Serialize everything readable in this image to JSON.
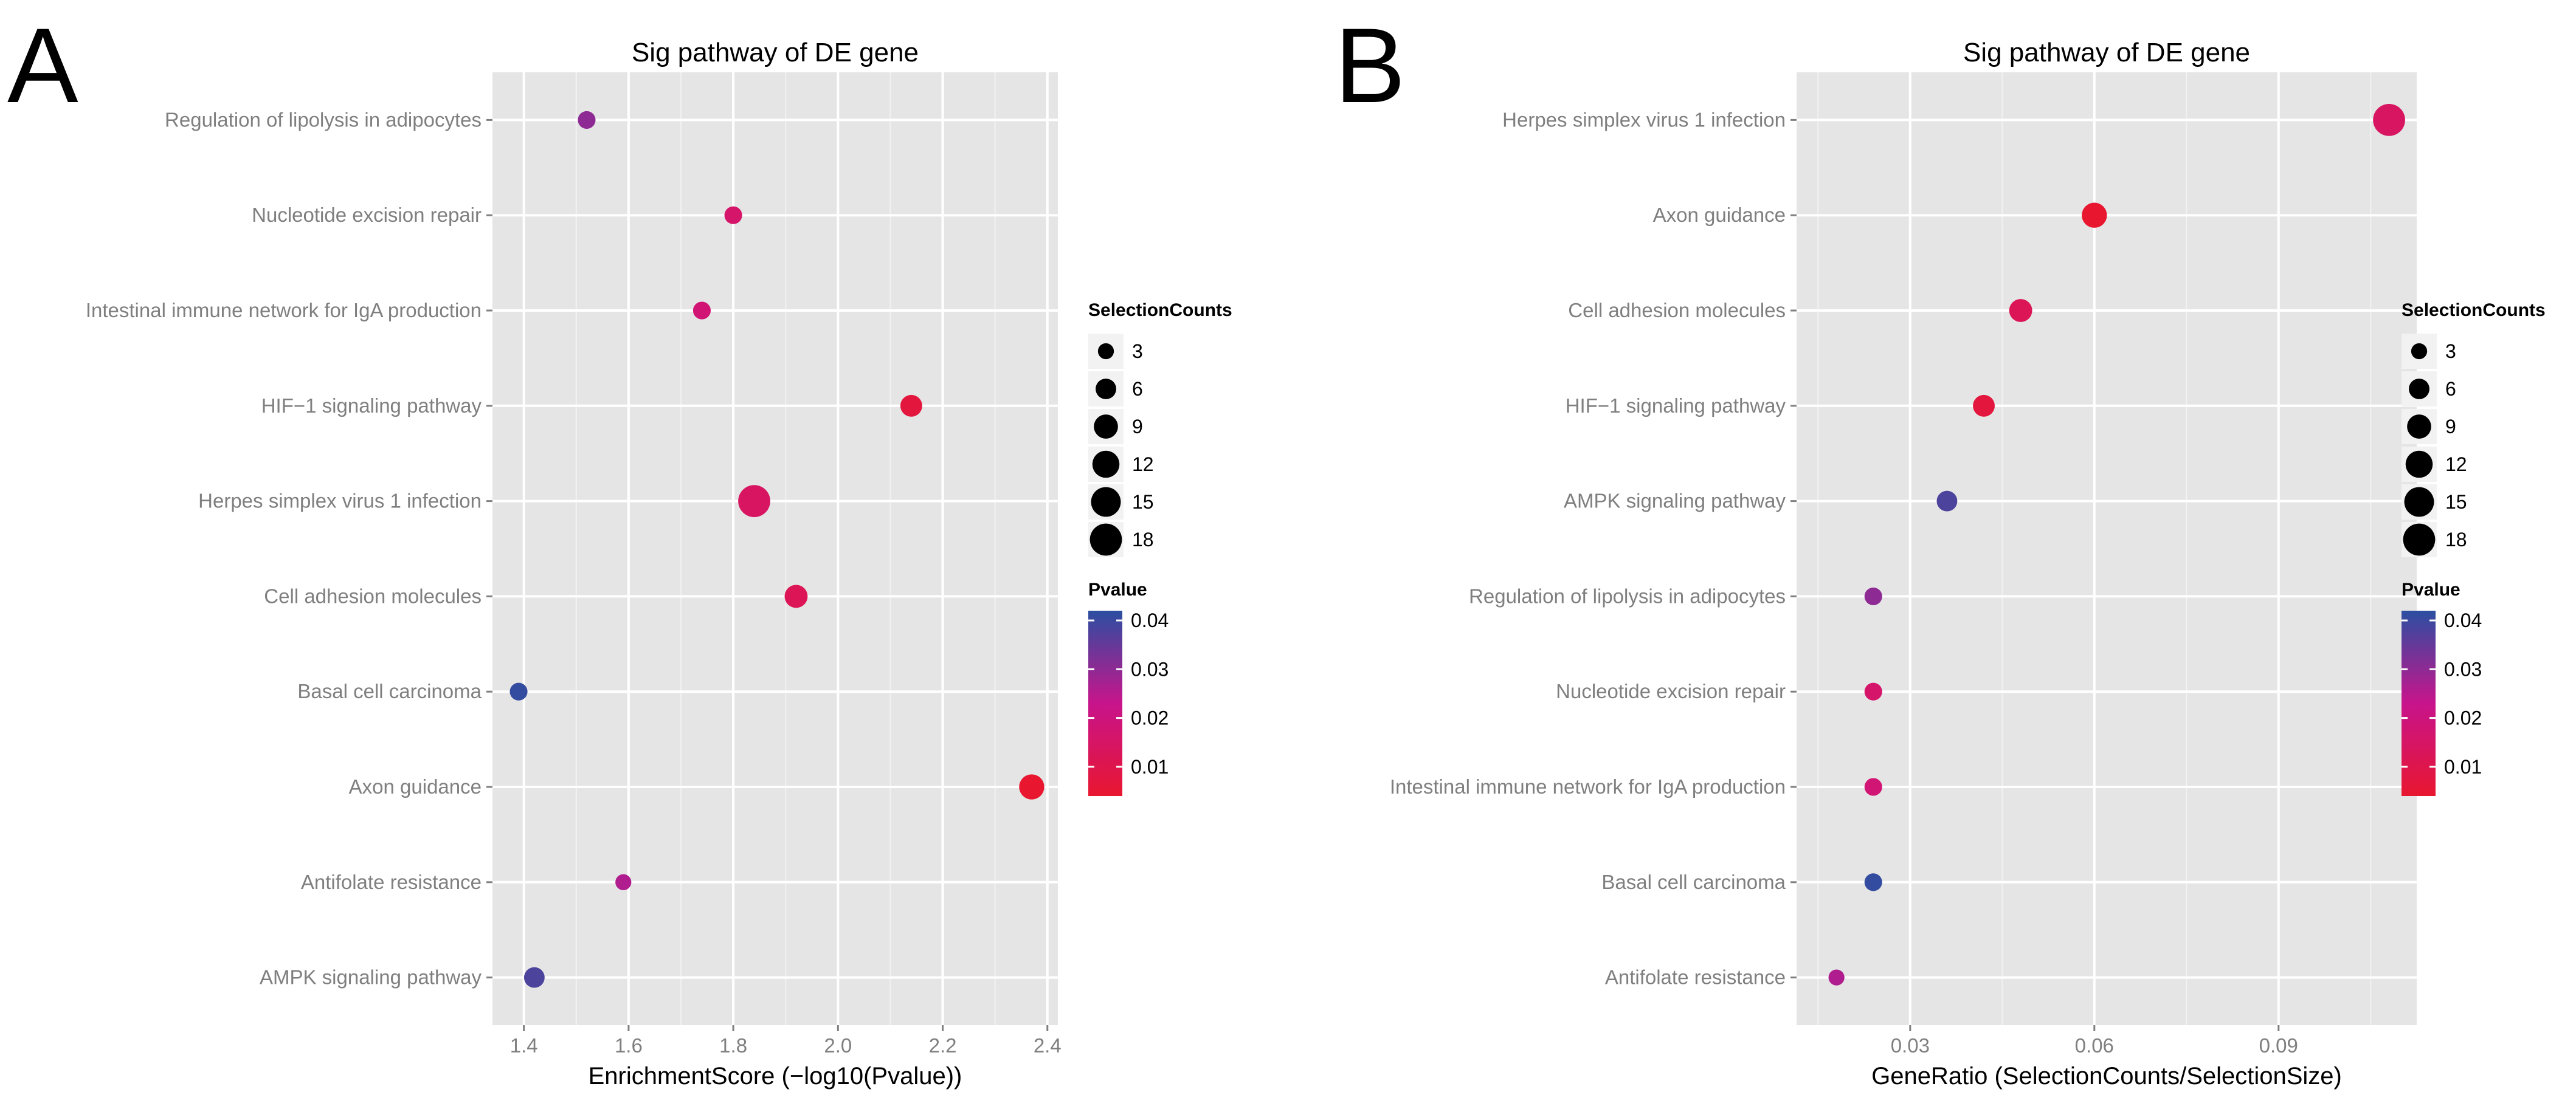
{
  "chart_data": [
    {
      "panel_label": "A",
      "type": "scatter",
      "title": "Sig pathway of DE gene",
      "xlabel": "EnrichmentScore (−log10(Pvalue))",
      "ylabel": "",
      "xlim": [
        1.34,
        2.42
      ],
      "xticks": [
        1.4,
        1.6,
        1.8,
        2.0,
        2.2,
        2.4
      ],
      "xtick_labels": [
        "1.4",
        "1.6",
        "1.8",
        "2.0",
        "2.2",
        "2.4"
      ],
      "categories": [
        "Regulation of lipolysis in adipocytes",
        "Nucleotide excision repair",
        "Intestinal immune network for IgA production",
        "HIF−1 signaling pathway",
        "Herpes simplex virus 1 infection",
        "Cell adhesion molecules",
        "Basal cell carcinoma",
        "Axon guidance",
        "Antifolate resistance",
        "AMPK signaling pathway"
      ],
      "points": [
        {
          "category": "Regulation of lipolysis in adipocytes",
          "x": 1.52,
          "count": 4,
          "pvalue": 0.03
        },
        {
          "category": "Nucleotide excision repair",
          "x": 1.8,
          "count": 4,
          "pvalue": 0.016
        },
        {
          "category": "Intestinal immune network for IgA production",
          "x": 1.74,
          "count": 4,
          "pvalue": 0.018
        },
        {
          "category": "HIF−1 signaling pathway",
          "x": 2.14,
          "count": 7,
          "pvalue": 0.007
        },
        {
          "category": "Herpes simplex virus 1 infection",
          "x": 1.84,
          "count": 18,
          "pvalue": 0.014
        },
        {
          "category": "Cell adhesion molecules",
          "x": 1.92,
          "count": 8,
          "pvalue": 0.012
        },
        {
          "category": "Basal cell carcinoma",
          "x": 1.39,
          "count": 4,
          "pvalue": 0.041
        },
        {
          "category": "Axon guidance",
          "x": 2.37,
          "count": 10,
          "pvalue": 0.004
        },
        {
          "category": "Antifolate resistance",
          "x": 1.59,
          "count": 3,
          "pvalue": 0.026
        },
        {
          "category": "AMPK signaling pathway",
          "x": 1.42,
          "count": 6,
          "pvalue": 0.038
        }
      ],
      "size_legend": {
        "title": "SelectionCounts",
        "values": [
          3,
          6,
          9,
          12,
          15,
          18
        ],
        "labels": [
          "3",
          "6",
          "9",
          "12",
          "15",
          "18"
        ]
      },
      "color_legend": {
        "title": "Pvalue",
        "range": [
          0.004,
          0.042
        ],
        "ticks": [
          0.04,
          0.03,
          0.02,
          0.01
        ],
        "tick_labels": [
          "0.04",
          "0.03",
          "0.02",
          "0.01"
        ]
      },
      "grid": true,
      "legend_position": "right"
    },
    {
      "panel_label": "B",
      "type": "scatter",
      "title": "Sig pathway of DE gene",
      "xlabel": "GeneRatio (SelectionCounts/SelectionSize)",
      "ylabel": "",
      "xlim": [
        0.0115,
        0.1125
      ],
      "xticks": [
        0.03,
        0.06,
        0.09
      ],
      "xtick_labels": [
        "0.03",
        "0.06",
        "0.09"
      ],
      "categories": [
        "Herpes simplex virus 1 infection",
        "Axon guidance",
        "Cell adhesion molecules",
        "HIF−1 signaling pathway",
        "AMPK signaling pathway",
        "Regulation of lipolysis in adipocytes",
        "Nucleotide excision repair",
        "Intestinal immune network for IgA production",
        "Basal cell carcinoma",
        "Antifolate resistance"
      ],
      "points": [
        {
          "category": "Herpes simplex virus 1 infection",
          "x": 0.108,
          "count": 18,
          "pvalue": 0.014
        },
        {
          "category": "Axon guidance",
          "x": 0.06,
          "count": 10,
          "pvalue": 0.004
        },
        {
          "category": "Cell adhesion molecules",
          "x": 0.048,
          "count": 8,
          "pvalue": 0.012
        },
        {
          "category": "HIF−1 signaling pathway",
          "x": 0.042,
          "count": 7,
          "pvalue": 0.007
        },
        {
          "category": "AMPK signaling pathway",
          "x": 0.036,
          "count": 6,
          "pvalue": 0.038
        },
        {
          "category": "Regulation of lipolysis in adipocytes",
          "x": 0.024,
          "count": 4,
          "pvalue": 0.03
        },
        {
          "category": "Nucleotide excision repair",
          "x": 0.024,
          "count": 4,
          "pvalue": 0.016
        },
        {
          "category": "Intestinal immune network for IgA production",
          "x": 0.024,
          "count": 4,
          "pvalue": 0.018
        },
        {
          "category": "Basal cell carcinoma",
          "x": 0.024,
          "count": 4,
          "pvalue": 0.041
        },
        {
          "category": "Antifolate resistance",
          "x": 0.018,
          "count": 3,
          "pvalue": 0.026
        }
      ],
      "size_legend": {
        "title": "SelectionCounts",
        "values": [
          3,
          6,
          9,
          12,
          15,
          18
        ],
        "labels": [
          "3",
          "6",
          "9",
          "12",
          "15",
          "18"
        ]
      },
      "color_legend": {
        "title": "Pvalue",
        "range": [
          0.004,
          0.042
        ],
        "ticks": [
          0.04,
          0.03,
          0.02,
          0.01
        ],
        "tick_labels": [
          "0.04",
          "0.03",
          "0.02",
          "0.01"
        ]
      },
      "grid": true,
      "legend_position": "right"
    }
  ],
  "colors": {
    "panel_background": "#e5e5e5",
    "grid_major": "#ffffff",
    "grid_minor": "#f2f2f2",
    "low_pvalue": "#e8162f",
    "high_pvalue": "#2b4fa1",
    "tick_text": "#7f7f7f"
  }
}
